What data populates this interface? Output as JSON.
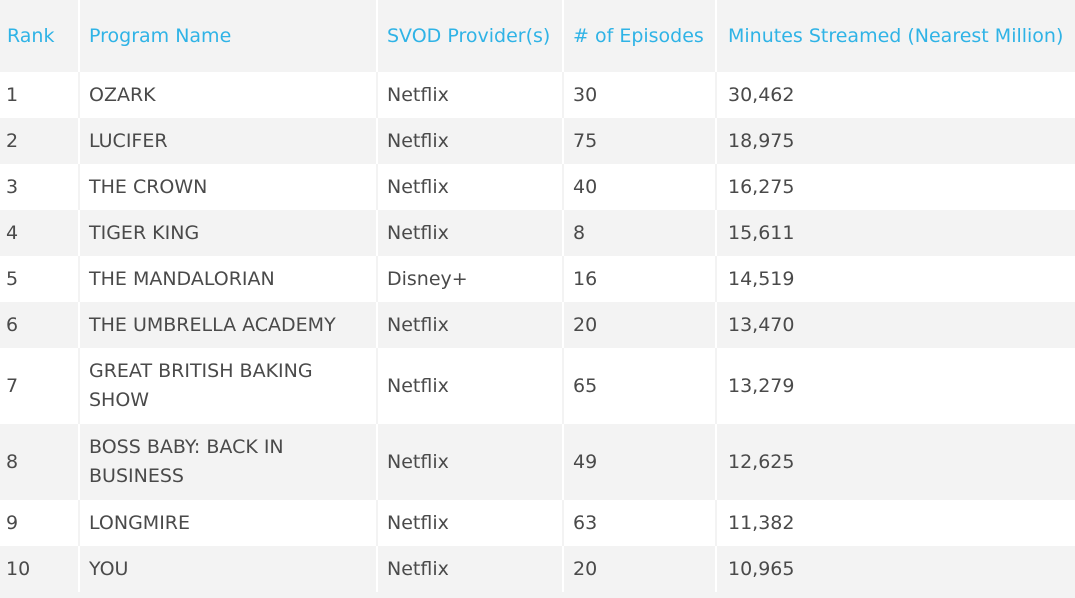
{
  "table": {
    "headers": {
      "rank": "Rank",
      "program": "Program Name",
      "provider": "SVOD Provider(s)",
      "episodes": "# of Episodes",
      "minutes": "Minutes Streamed (Nearest Million)"
    },
    "rows": [
      {
        "rank": "1",
        "program": "OZARK",
        "provider": "Netflix",
        "episodes": "30",
        "minutes": "30,462"
      },
      {
        "rank": "2",
        "program": "LUCIFER",
        "provider": "Netflix",
        "episodes": "75",
        "minutes": "18,975"
      },
      {
        "rank": "3",
        "program": "THE CROWN",
        "provider": "Netflix",
        "episodes": "40",
        "minutes": "16,275"
      },
      {
        "rank": "4",
        "program": "TIGER KING",
        "provider": "Netflix",
        "episodes": "8",
        "minutes": "15,611"
      },
      {
        "rank": "5",
        "program": "THE MANDALORIAN",
        "provider": "Disney+",
        "episodes": "16",
        "minutes": "14,519"
      },
      {
        "rank": "6",
        "program": "THE UMBRELLA ACADEMY",
        "provider": "Netflix",
        "episodes": "20",
        "minutes": "13,470"
      },
      {
        "rank": "7",
        "program": "GREAT BRITISH BAKING SHOW",
        "provider": "Netflix",
        "episodes": "65",
        "minutes": "13,279"
      },
      {
        "rank": "8",
        "program": "BOSS BABY: BACK IN BUSINESS",
        "provider": "Netflix",
        "episodes": "49",
        "minutes": "12,625"
      },
      {
        "rank": "9",
        "program": "LONGMIRE",
        "provider": "Netflix",
        "episodes": "63",
        "minutes": "11,382"
      },
      {
        "rank": "10",
        "program": "YOU",
        "provider": "Netflix",
        "episodes": "20",
        "minutes": "10,965"
      }
    ]
  },
  "colors": {
    "header_text": "#2fb3e6",
    "body_text": "#4a4a4a",
    "row_alt_light": "#ffffff",
    "row_alt_gray": "#f3f3f3"
  }
}
